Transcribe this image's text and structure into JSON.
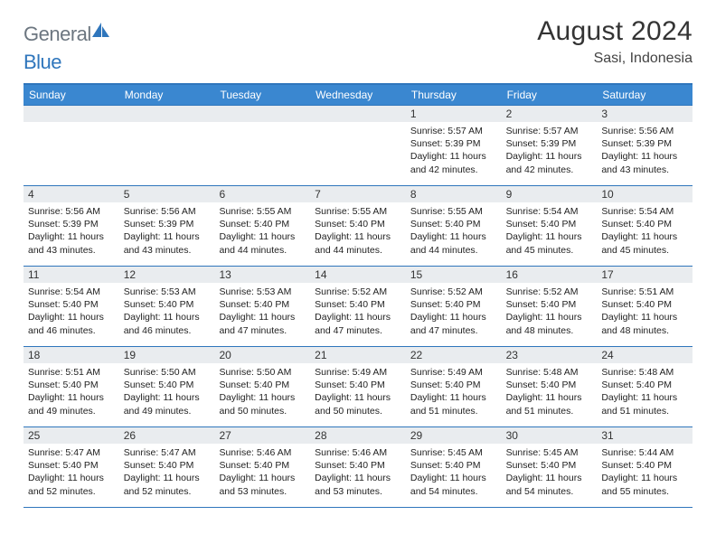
{
  "brand": {
    "part1": "General",
    "part2": "Blue"
  },
  "title": "August 2024",
  "location": "Sasi, Indonesia",
  "colors": {
    "header_bg": "#3a87d0",
    "border": "#2f76bc",
    "daynum_bg": "#e9ecef",
    "text": "#222222",
    "title": "#343434"
  },
  "weekdays": [
    "Sunday",
    "Monday",
    "Tuesday",
    "Wednesday",
    "Thursday",
    "Friday",
    "Saturday"
  ],
  "weeks": [
    [
      {
        "n": "",
        "sr": "",
        "ss": "",
        "dl": ""
      },
      {
        "n": "",
        "sr": "",
        "ss": "",
        "dl": ""
      },
      {
        "n": "",
        "sr": "",
        "ss": "",
        "dl": ""
      },
      {
        "n": "",
        "sr": "",
        "ss": "",
        "dl": ""
      },
      {
        "n": "1",
        "sr": "Sunrise: 5:57 AM",
        "ss": "Sunset: 5:39 PM",
        "dl": "Daylight: 11 hours and 42 minutes."
      },
      {
        "n": "2",
        "sr": "Sunrise: 5:57 AM",
        "ss": "Sunset: 5:39 PM",
        "dl": "Daylight: 11 hours and 42 minutes."
      },
      {
        "n": "3",
        "sr": "Sunrise: 5:56 AM",
        "ss": "Sunset: 5:39 PM",
        "dl": "Daylight: 11 hours and 43 minutes."
      }
    ],
    [
      {
        "n": "4",
        "sr": "Sunrise: 5:56 AM",
        "ss": "Sunset: 5:39 PM",
        "dl": "Daylight: 11 hours and 43 minutes."
      },
      {
        "n": "5",
        "sr": "Sunrise: 5:56 AM",
        "ss": "Sunset: 5:39 PM",
        "dl": "Daylight: 11 hours and 43 minutes."
      },
      {
        "n": "6",
        "sr": "Sunrise: 5:55 AM",
        "ss": "Sunset: 5:40 PM",
        "dl": "Daylight: 11 hours and 44 minutes."
      },
      {
        "n": "7",
        "sr": "Sunrise: 5:55 AM",
        "ss": "Sunset: 5:40 PM",
        "dl": "Daylight: 11 hours and 44 minutes."
      },
      {
        "n": "8",
        "sr": "Sunrise: 5:55 AM",
        "ss": "Sunset: 5:40 PM",
        "dl": "Daylight: 11 hours and 44 minutes."
      },
      {
        "n": "9",
        "sr": "Sunrise: 5:54 AM",
        "ss": "Sunset: 5:40 PM",
        "dl": "Daylight: 11 hours and 45 minutes."
      },
      {
        "n": "10",
        "sr": "Sunrise: 5:54 AM",
        "ss": "Sunset: 5:40 PM",
        "dl": "Daylight: 11 hours and 45 minutes."
      }
    ],
    [
      {
        "n": "11",
        "sr": "Sunrise: 5:54 AM",
        "ss": "Sunset: 5:40 PM",
        "dl": "Daylight: 11 hours and 46 minutes."
      },
      {
        "n": "12",
        "sr": "Sunrise: 5:53 AM",
        "ss": "Sunset: 5:40 PM",
        "dl": "Daylight: 11 hours and 46 minutes."
      },
      {
        "n": "13",
        "sr": "Sunrise: 5:53 AM",
        "ss": "Sunset: 5:40 PM",
        "dl": "Daylight: 11 hours and 47 minutes."
      },
      {
        "n": "14",
        "sr": "Sunrise: 5:52 AM",
        "ss": "Sunset: 5:40 PM",
        "dl": "Daylight: 11 hours and 47 minutes."
      },
      {
        "n": "15",
        "sr": "Sunrise: 5:52 AM",
        "ss": "Sunset: 5:40 PM",
        "dl": "Daylight: 11 hours and 47 minutes."
      },
      {
        "n": "16",
        "sr": "Sunrise: 5:52 AM",
        "ss": "Sunset: 5:40 PM",
        "dl": "Daylight: 11 hours and 48 minutes."
      },
      {
        "n": "17",
        "sr": "Sunrise: 5:51 AM",
        "ss": "Sunset: 5:40 PM",
        "dl": "Daylight: 11 hours and 48 minutes."
      }
    ],
    [
      {
        "n": "18",
        "sr": "Sunrise: 5:51 AM",
        "ss": "Sunset: 5:40 PM",
        "dl": "Daylight: 11 hours and 49 minutes."
      },
      {
        "n": "19",
        "sr": "Sunrise: 5:50 AM",
        "ss": "Sunset: 5:40 PM",
        "dl": "Daylight: 11 hours and 49 minutes."
      },
      {
        "n": "20",
        "sr": "Sunrise: 5:50 AM",
        "ss": "Sunset: 5:40 PM",
        "dl": "Daylight: 11 hours and 50 minutes."
      },
      {
        "n": "21",
        "sr": "Sunrise: 5:49 AM",
        "ss": "Sunset: 5:40 PM",
        "dl": "Daylight: 11 hours and 50 minutes."
      },
      {
        "n": "22",
        "sr": "Sunrise: 5:49 AM",
        "ss": "Sunset: 5:40 PM",
        "dl": "Daylight: 11 hours and 51 minutes."
      },
      {
        "n": "23",
        "sr": "Sunrise: 5:48 AM",
        "ss": "Sunset: 5:40 PM",
        "dl": "Daylight: 11 hours and 51 minutes."
      },
      {
        "n": "24",
        "sr": "Sunrise: 5:48 AM",
        "ss": "Sunset: 5:40 PM",
        "dl": "Daylight: 11 hours and 51 minutes."
      }
    ],
    [
      {
        "n": "25",
        "sr": "Sunrise: 5:47 AM",
        "ss": "Sunset: 5:40 PM",
        "dl": "Daylight: 11 hours and 52 minutes."
      },
      {
        "n": "26",
        "sr": "Sunrise: 5:47 AM",
        "ss": "Sunset: 5:40 PM",
        "dl": "Daylight: 11 hours and 52 minutes."
      },
      {
        "n": "27",
        "sr": "Sunrise: 5:46 AM",
        "ss": "Sunset: 5:40 PM",
        "dl": "Daylight: 11 hours and 53 minutes."
      },
      {
        "n": "28",
        "sr": "Sunrise: 5:46 AM",
        "ss": "Sunset: 5:40 PM",
        "dl": "Daylight: 11 hours and 53 minutes."
      },
      {
        "n": "29",
        "sr": "Sunrise: 5:45 AM",
        "ss": "Sunset: 5:40 PM",
        "dl": "Daylight: 11 hours and 54 minutes."
      },
      {
        "n": "30",
        "sr": "Sunrise: 5:45 AM",
        "ss": "Sunset: 5:40 PM",
        "dl": "Daylight: 11 hours and 54 minutes."
      },
      {
        "n": "31",
        "sr": "Sunrise: 5:44 AM",
        "ss": "Sunset: 5:40 PM",
        "dl": "Daylight: 11 hours and 55 minutes."
      }
    ]
  ]
}
